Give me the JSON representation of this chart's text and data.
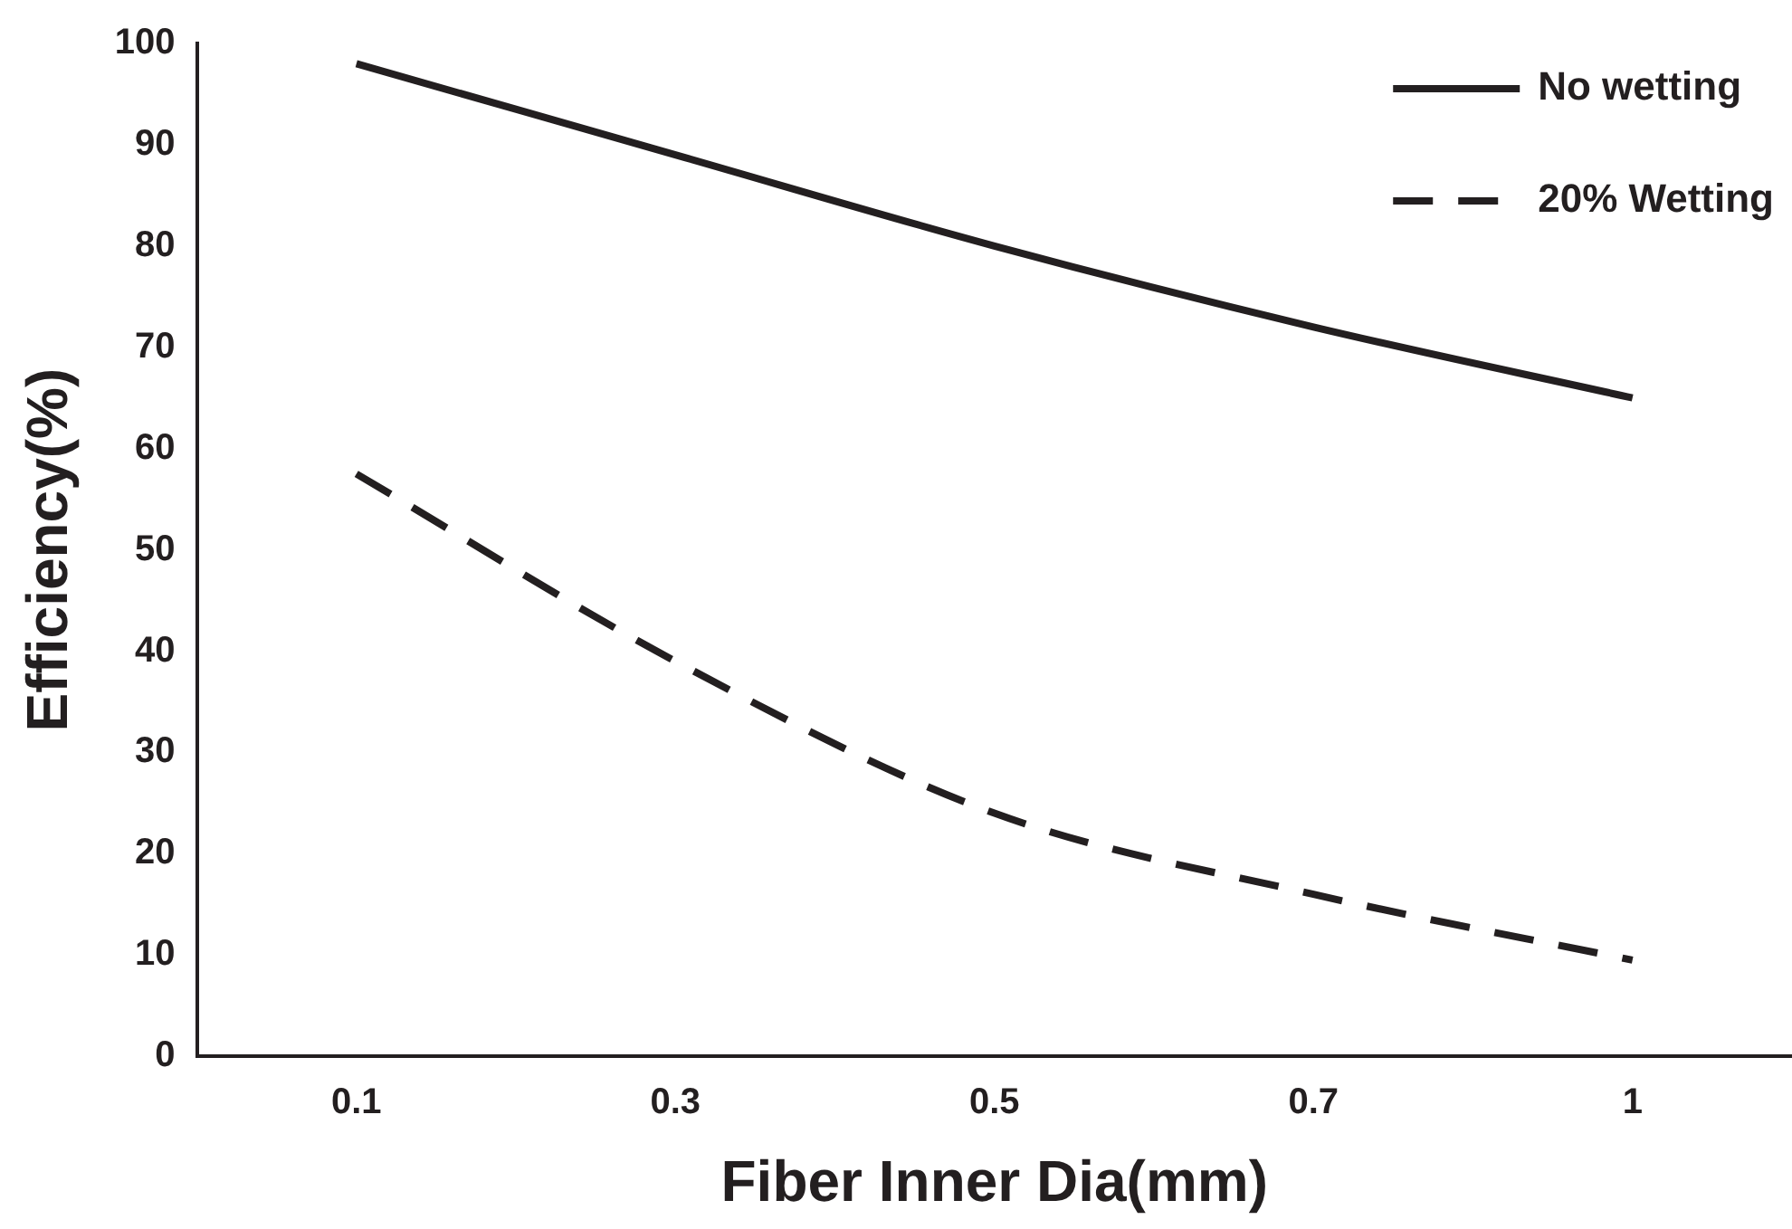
{
  "chart_data": {
    "type": "line",
    "xlabel": "Fiber Inner Dia(mm)",
    "ylabel": "Efficiency(%)",
    "categories": [
      "0.1",
      "0.3",
      "0.5",
      "0.7",
      "1"
    ],
    "series": [
      {
        "name": "No wetting",
        "color": "#231f20",
        "line_style": "solid",
        "values": [
          98,
          89,
          80,
          72,
          65
        ]
      },
      {
        "name": "20% Wetting",
        "color": "#231f20",
        "line_style": "dashed",
        "values": [
          57.5,
          39,
          24,
          16,
          9.5
        ]
      }
    ],
    "ylim": [
      0,
      100
    ],
    "yticks": [
      0,
      10,
      20,
      30,
      40,
      50,
      60,
      70,
      80,
      90,
      100
    ],
    "grid": false,
    "legend": "top right",
    "marker": "none"
  }
}
